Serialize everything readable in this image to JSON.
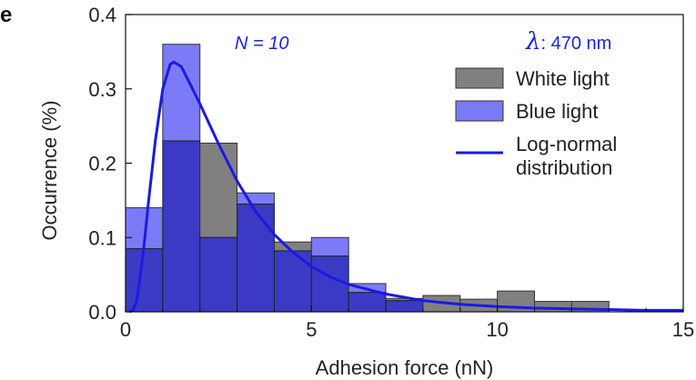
{
  "panel_label": "e",
  "chart_data": {
    "type": "bar",
    "subtype": "overlaid-histogram-with-fit",
    "xlabel": "Adhesion force (nN)",
    "ylabel": "Occurrence (%)",
    "xlim": [
      0,
      15
    ],
    "ylim": [
      0,
      0.4
    ],
    "x_ticks": [
      0,
      5,
      10,
      15
    ],
    "x_tick_labels": [
      "0",
      "5",
      "10",
      "15"
    ],
    "y_ticks": [
      0.0,
      0.1,
      0.2,
      0.3,
      0.4
    ],
    "y_tick_labels": [
      "0.0",
      "0.1",
      "0.2",
      "0.3",
      "0.4"
    ],
    "grid": false,
    "legend_position": "top-right",
    "bin_edges": [
      0,
      1,
      2,
      3,
      4,
      5,
      6,
      7,
      8,
      9,
      10,
      11,
      12,
      13
    ],
    "series": [
      {
        "name": "White light",
        "kind": "histogram",
        "color": "#808080",
        "values": [
          0.085,
          0.23,
          0.227,
          0.145,
          0.094,
          0.075,
          0.026,
          0.018,
          0.022,
          0.017,
          0.028,
          0.014,
          0.014
        ]
      },
      {
        "name": "Blue light",
        "kind": "histogram",
        "color": "#7b7bf7",
        "values": [
          0.14,
          0.36,
          0.1,
          0.16,
          0.082,
          0.1,
          0.038,
          0.015,
          0,
          0,
          0,
          0,
          0
        ]
      },
      {
        "name": "Log-normal distribution",
        "kind": "line",
        "color": "#1a1ae6",
        "x": [
          0.1,
          0.2,
          0.3,
          0.4,
          0.5,
          0.6,
          0.8,
          1.0,
          1.2,
          1.3,
          1.5,
          1.8,
          2.0,
          2.5,
          3.0,
          3.5,
          4.0,
          4.5,
          5.0,
          5.5,
          6.0,
          7.0,
          8.0,
          9.0,
          10.0,
          11.0,
          12.0,
          13.0,
          14.0,
          15.0
        ],
        "y": [
          0.0,
          0.002,
          0.015,
          0.05,
          0.09,
          0.14,
          0.23,
          0.3,
          0.333,
          0.336,
          0.33,
          0.3,
          0.28,
          0.226,
          0.176,
          0.135,
          0.104,
          0.08,
          0.061,
          0.047,
          0.037,
          0.024,
          0.015,
          0.01,
          0.007,
          0.005,
          0.004,
          0.003,
          0.002,
          0.002
        ]
      }
    ],
    "annotations": {
      "n_text": "N = 10",
      "lambda_symbol": "λ",
      "lambda_text": ": 470 nm"
    },
    "legend": {
      "white": "White light",
      "blue": "Blue light",
      "fit_line1": "Log-normal",
      "fit_line2": "distribution"
    }
  }
}
